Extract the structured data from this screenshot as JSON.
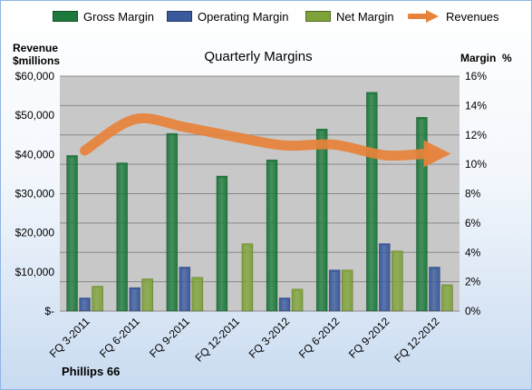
{
  "chart_data": {
    "type": "bar",
    "title": "Quarterly Margins",
    "ylabel_left": "Revenue\n$millions",
    "ylabel_right": "Margin  %",
    "categories": [
      "FQ 3-2011",
      "FQ 6-2011",
      "FQ 9-2011",
      "FQ 12-2011",
      "FQ 3-2012",
      "FQ 6-2012",
      "FQ 9-2012",
      "FQ 12-2012"
    ],
    "ylim_left": [
      0,
      60000
    ],
    "yticks_left": [
      "$-",
      "$10,000",
      "$20,000",
      "$30,000",
      "$40,000",
      "$50,000",
      "$60,000"
    ],
    "ylim_right": [
      0,
      16
    ],
    "yticks_right": [
      "0%",
      "2%",
      "4%",
      "6%",
      "8%",
      "10%",
      "12%",
      "14%",
      "16%"
    ],
    "grid": true,
    "legend_position": "top",
    "series": [
      {
        "name": "Gross Margin",
        "kind": "bar",
        "axis": "right",
        "color": "#1e7a3c",
        "values": [
          10.6,
          10.1,
          12.1,
          9.2,
          10.3,
          12.4,
          14.9,
          13.2
        ]
      },
      {
        "name": "Operating Margin",
        "kind": "bar",
        "axis": "right",
        "color": "#3a5a9c",
        "values": [
          0.9,
          1.6,
          3.0,
          0,
          0.9,
          2.8,
          4.6,
          3.0
        ]
      },
      {
        "name": "Net Margin",
        "kind": "bar",
        "axis": "right",
        "color": "#7fa33a",
        "values": [
          1.7,
          2.2,
          2.3,
          4.6,
          1.5,
          2.8,
          4.1,
          1.8
        ]
      },
      {
        "name": "Revenues",
        "kind": "line",
        "axis": "left",
        "color": "#e8823a",
        "values": [
          41000,
          49000,
          47000,
          44500,
          42300,
          42500,
          39800,
          40200
        ]
      }
    ]
  },
  "footer": "Phillips 66"
}
